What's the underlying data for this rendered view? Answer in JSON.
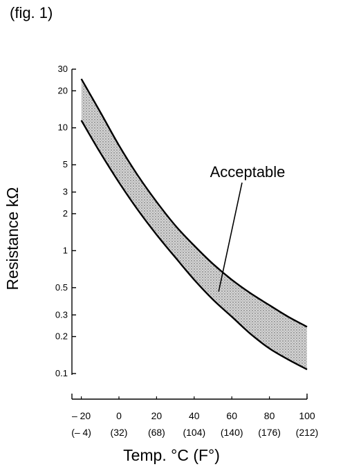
{
  "figure_label": "(fig. 1)",
  "chart_data": {
    "type": "area",
    "title": "",
    "xlabel": "Temp. °C (F°)",
    "ylabel": "Resistance kΩ",
    "x_scale": "linear",
    "y_scale": "log",
    "xlim": [
      -25,
      100
    ],
    "ylim": [
      0.1,
      30
    ],
    "x_ticks": [
      {
        "value": -20,
        "label": "– 20",
        "sublabel": "(– 4)"
      },
      {
        "value": 0,
        "label": "0",
        "sublabel": "(32)"
      },
      {
        "value": 20,
        "label": "20",
        "sublabel": "(68)"
      },
      {
        "value": 40,
        "label": "40",
        "sublabel": "(104)"
      },
      {
        "value": 60,
        "label": "60",
        "sublabel": "(140)"
      },
      {
        "value": 80,
        "label": "80",
        "sublabel": "(176)"
      },
      {
        "value": 100,
        "label": "100",
        "sublabel": "(212)"
      }
    ],
    "y_ticks": [
      {
        "value": 0.1,
        "label": "0.1"
      },
      {
        "value": 0.2,
        "label": "0.2"
      },
      {
        "value": 0.3,
        "label": "0.3"
      },
      {
        "value": 0.5,
        "label": "0.5"
      },
      {
        "value": 1,
        "label": "1"
      },
      {
        "value": 2,
        "label": "2"
      },
      {
        "value": 3,
        "label": "3"
      },
      {
        "value": 5,
        "label": "5"
      },
      {
        "value": 10,
        "label": "10"
      },
      {
        "value": 20,
        "label": "20"
      },
      {
        "value": 30,
        "label": "30"
      }
    ],
    "band": {
      "label": "Acceptable",
      "fill": "#cfcfcf",
      "x": [
        -20,
        -10,
        0,
        10,
        20,
        30,
        40,
        50,
        60,
        70,
        80,
        90,
        100
      ],
      "upper": [
        25,
        13.5,
        7.2,
        4.1,
        2.5,
        1.6,
        1.1,
        0.78,
        0.58,
        0.45,
        0.36,
        0.29,
        0.24
      ],
      "lower": [
        11.5,
        6.3,
        3.6,
        2.15,
        1.35,
        0.88,
        0.58,
        0.4,
        0.29,
        0.21,
        0.16,
        0.13,
        0.108
      ]
    },
    "grid": false,
    "legend": "none"
  }
}
